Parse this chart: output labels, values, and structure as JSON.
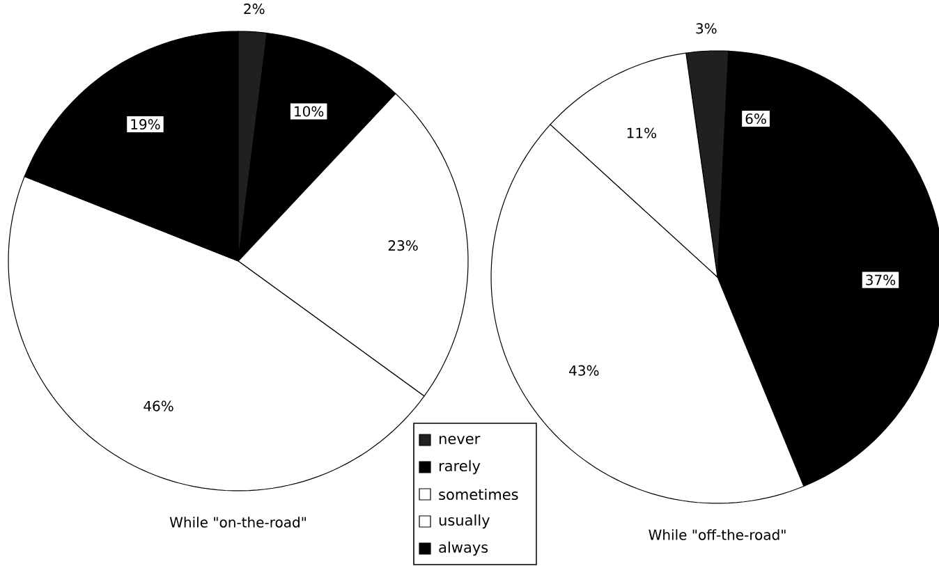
{
  "chart_data": [
    {
      "type": "pie",
      "title": "While \"on-the-road\"",
      "categories": [
        "never",
        "rarely",
        "sometimes",
        "usually",
        "always"
      ],
      "values": [
        2,
        10,
        23,
        46,
        19
      ],
      "colors": [
        "#202020",
        "#000000",
        "#ffffff",
        "#ffffff",
        "#000000"
      ],
      "value_labels": [
        "2%",
        "10%",
        "23%",
        "46%",
        "19%"
      ],
      "legend": "bottom right"
    },
    {
      "type": "pie",
      "title": "While \"off-the-road\"",
      "categories": [
        null,
        null,
        null,
        null,
        null
      ],
      "values": [
        3,
        6,
        37,
        43,
        11
      ],
      "colors": [
        "#202020",
        "#000000",
        "#000000",
        "#ffffff",
        "#ffffff"
      ],
      "value_labels": [
        "3%",
        "6%",
        "37%",
        "43%",
        "11%"
      ]
    }
  ]
}
